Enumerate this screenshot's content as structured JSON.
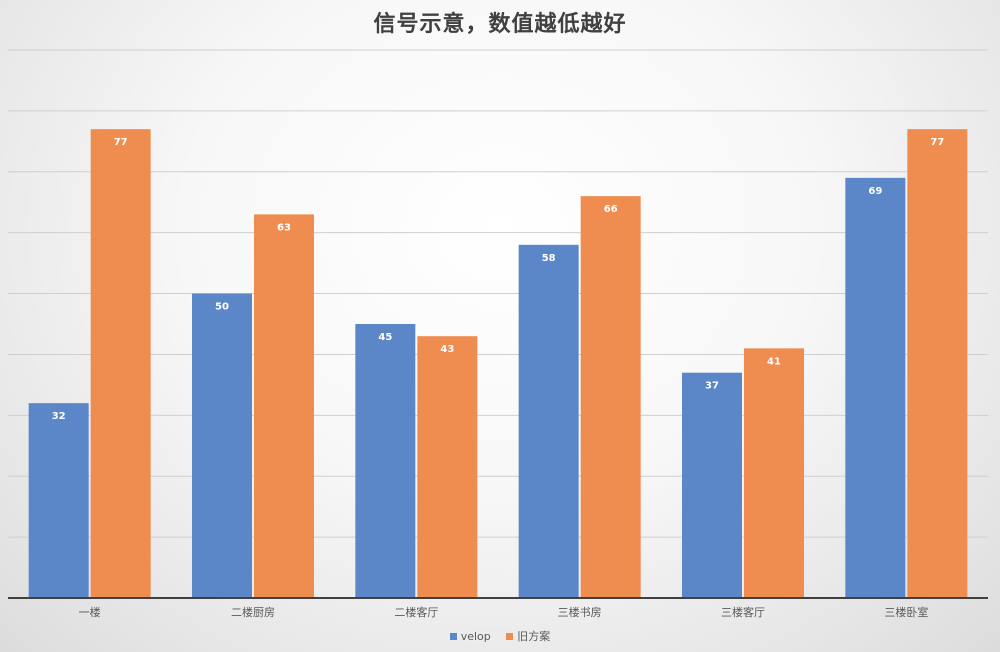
{
  "chart_data": {
    "type": "bar",
    "title": "信号示意，数值越低越好",
    "xlabel": "",
    "ylabel": "",
    "categories": [
      "一楼",
      "二楼厨房",
      "二楼客厅",
      "三楼书房",
      "三楼客厅",
      "三楼卧室"
    ],
    "series": [
      {
        "name": "velop",
        "values": [
          32,
          50,
          45,
          58,
          37,
          69
        ],
        "color": "#5b87c9"
      },
      {
        "name": "旧方案",
        "values": [
          77,
          63,
          43,
          66,
          41,
          77
        ],
        "color": "#ee8d4f"
      }
    ],
    "ylim": [
      0,
      90
    ],
    "grid": true,
    "data_labels": true,
    "legend_position": "bottom"
  }
}
